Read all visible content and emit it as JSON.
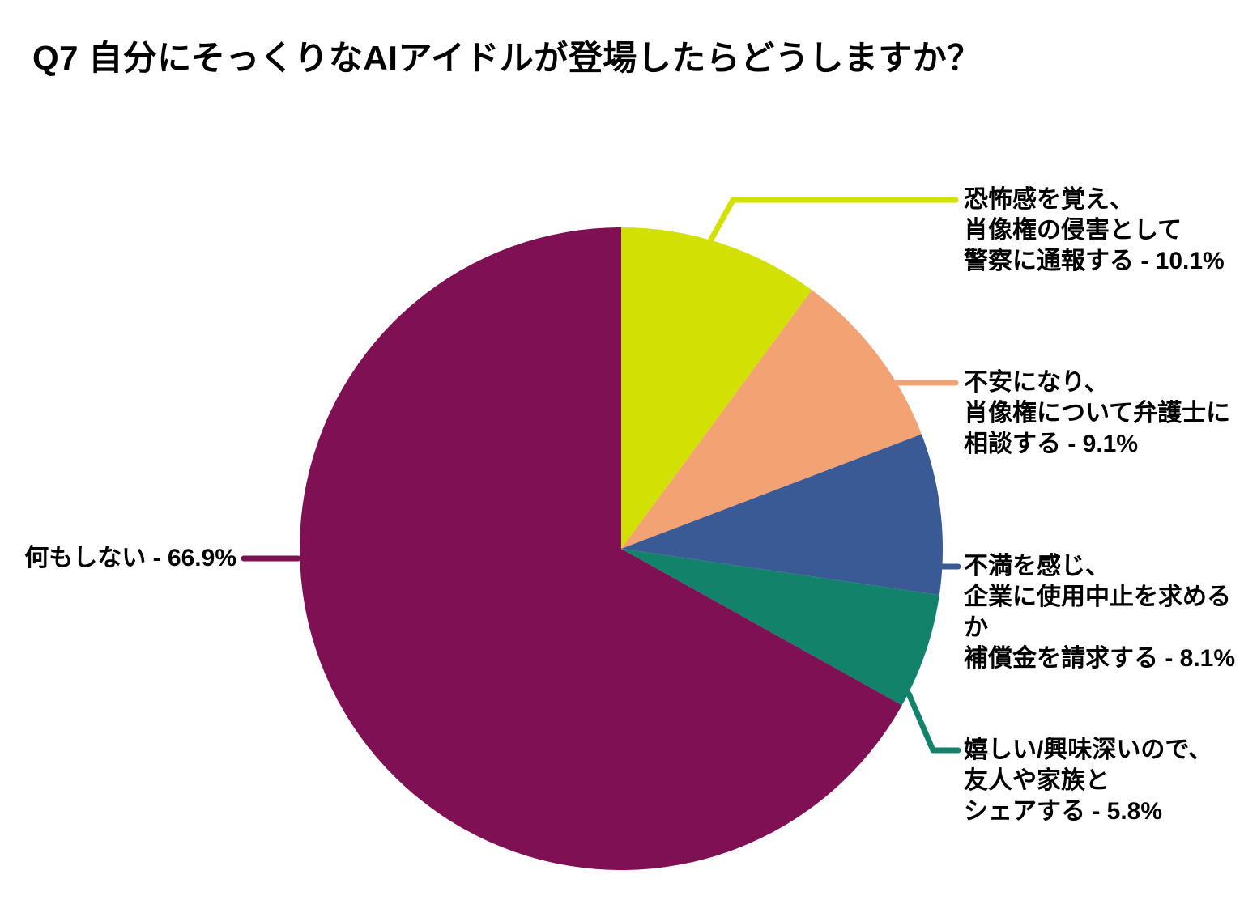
{
  "chart_data": {
    "type": "pie",
    "title": "Q7 自分にそっくりなAIアイドルが登場したらどうしますか？",
    "start_angle": "12-oclock",
    "direction": "clockwise",
    "legend_position": "outside-callouts",
    "slices": [
      {
        "name": "恐怖感を覚え、肖像権の侵害として警察に通報する",
        "value": 10.1,
        "color": "#d3e004",
        "label_display": "恐怖感を覚え、\n肖像権の侵害として\n警察に通報する - 10.1%"
      },
      {
        "name": "不安になり、肖像権について弁護士に相談する",
        "value": 9.1,
        "color": "#f2a273",
        "label_display": "不安になり、\n肖像権について弁護士に\n相談する - 9.1%"
      },
      {
        "name": "不満を感じ、企業に使用中止を求めるか補償金を請求する",
        "value": 8.1,
        "color": "#3a5a96",
        "label_display": "不満を感じ、\n企業に使用中止を求めるか\n補償金を請求する - 8.1%"
      },
      {
        "name": "嬉しい/興味深いので、友人や家族とシェアする",
        "value": 5.8,
        "color": "#12836a",
        "label_display": "嬉しい/興味深いので、\n友人や家族と\nシェアする - 5.8%"
      },
      {
        "name": "何もしない",
        "value": 66.9,
        "color": "#7f1054",
        "label_display": "何もしない - 66.9%"
      }
    ]
  }
}
